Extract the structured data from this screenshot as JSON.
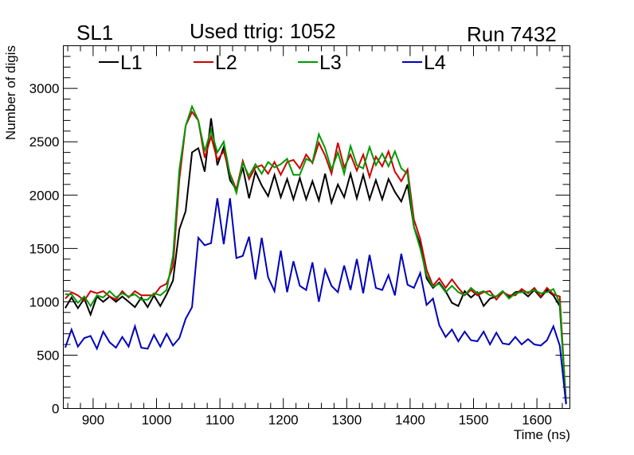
{
  "header": {
    "left_label": "SL1",
    "title": "Used ttrig: 1052",
    "right_label": "Run 7432"
  },
  "chart_data": {
    "type": "line",
    "title": "Used ttrig: 1052",
    "xlabel": "Time (ns)",
    "ylabel": "Number of digis",
    "xlim": [
      853,
      1652
    ],
    "ylim": [
      0,
      3400
    ],
    "xticks": [
      900,
      1000,
      1100,
      1200,
      1300,
      1400,
      1500,
      1600
    ],
    "yticks": [
      0,
      500,
      1000,
      1500,
      2000,
      2500,
      3000
    ],
    "legend_position": "top",
    "x": [
      856,
      866,
      876,
      886,
      896,
      906,
      916,
      926,
      936,
      946,
      956,
      966,
      976,
      986,
      996,
      1006,
      1016,
      1026,
      1036,
      1046,
      1056,
      1066,
      1076,
      1086,
      1096,
      1106,
      1116,
      1126,
      1136,
      1146,
      1156,
      1166,
      1176,
      1186,
      1196,
      1206,
      1216,
      1226,
      1236,
      1246,
      1256,
      1266,
      1276,
      1286,
      1296,
      1306,
      1316,
      1326,
      1336,
      1346,
      1356,
      1366,
      1376,
      1386,
      1396,
      1406,
      1416,
      1426,
      1436,
      1446,
      1456,
      1466,
      1476,
      1486,
      1496,
      1506,
      1516,
      1526,
      1536,
      1546,
      1556,
      1566,
      1576,
      1586,
      1596,
      1606,
      1616,
      1626,
      1636,
      1646
    ],
    "series": [
      {
        "name": "L1",
        "color": "#000000",
        "values": [
          940,
          1040,
          940,
          1030,
          880,
          1050,
          1000,
          1050,
          1000,
          1050,
          1000,
          950,
          1040,
          950,
          1060,
          960,
          1070,
          1200,
          1680,
          1850,
          2400,
          2440,
          2220,
          2720,
          2280,
          2450,
          2140,
          2050,
          2260,
          1970,
          2220,
          2090,
          1990,
          2190,
          1980,
          2150,
          1960,
          2160,
          1960,
          2130,
          1950,
          2200,
          1930,
          2100,
          1980,
          2200,
          1970,
          2190,
          1960,
          2140,
          1960,
          2150,
          2030,
          1940,
          2100,
          1700,
          1540,
          1220,
          1130,
          1180,
          1100,
          990,
          960,
          1100,
          1040,
          1090,
          960,
          1030,
          1050,
          1100,
          1040,
          1090,
          1100,
          1050,
          1110,
          1040,
          1110,
          1060,
          960,
          50
        ]
      },
      {
        "name": "L2",
        "color": "#cc0000",
        "values": [
          1030,
          1090,
          1060,
          1010,
          1100,
          1080,
          1100,
          1050,
          1020,
          1100,
          1040,
          1100,
          1060,
          1060,
          1060,
          1140,
          1170,
          1330,
          2150,
          2650,
          2780,
          2700,
          2350,
          2550,
          2330,
          2410,
          2200,
          2050,
          2320,
          2150,
          2260,
          2280,
          2200,
          2310,
          2190,
          2310,
          2330,
          2250,
          2380,
          2300,
          2490,
          2370,
          2200,
          2490,
          2260,
          2380,
          2230,
          2380,
          2170,
          2360,
          2270,
          2410,
          2220,
          2130,
          2240,
          1770,
          1590,
          1300,
          1150,
          1220,
          1130,
          1210,
          1130,
          1060,
          1110,
          1060,
          1090,
          1100,
          1020,
          1090,
          1060,
          1060,
          1120,
          1080,
          1130,
          1050,
          1130,
          1070,
          1050,
          50
        ]
      },
      {
        "name": "L3",
        "color": "#009900",
        "values": [
          1070,
          1070,
          990,
          1050,
          960,
          1060,
          1040,
          1100,
          1040,
          1080,
          1050,
          1070,
          1020,
          1020,
          1080,
          1060,
          1110,
          1430,
          2240,
          2650,
          2830,
          2700,
          2410,
          2610,
          2400,
          2500,
          2190,
          2020,
          2300,
          2180,
          2290,
          2200,
          2310,
          2260,
          2290,
          2340,
          2190,
          2190,
          2340,
          2310,
          2570,
          2440,
          2240,
          2400,
          2200,
          2460,
          2280,
          2250,
          2450,
          2280,
          2390,
          2270,
          2410,
          2250,
          2200,
          1700,
          1500,
          1250,
          1140,
          1170,
          1090,
          1150,
          1090,
          1060,
          1130,
          1080,
          1100,
          1060,
          1050,
          1100,
          1030,
          1080,
          1090,
          1090,
          1110,
          1080,
          1090,
          1120,
          990,
          50
        ]
      },
      {
        "name": "L4",
        "color": "#0000bb",
        "values": [
          570,
          740,
          580,
          660,
          680,
          560,
          720,
          620,
          570,
          670,
          580,
          770,
          570,
          560,
          690,
          580,
          700,
          590,
          660,
          840,
          950,
          1600,
          1530,
          1550,
          1970,
          1540,
          1970,
          1410,
          1430,
          1610,
          1210,
          1600,
          1230,
          1100,
          1480,
          1090,
          1380,
          1150,
          1110,
          1370,
          1000,
          1300,
          1150,
          1090,
          1340,
          1110,
          1400,
          1080,
          1440,
          1130,
          1110,
          1250,
          1060,
          1450,
          1160,
          1130,
          1270,
          970,
          1030,
          780,
          670,
          740,
          630,
          720,
          640,
          630,
          720,
          600,
          710,
          610,
          600,
          670,
          600,
          650,
          600,
          590,
          640,
          770,
          590,
          40
        ]
      }
    ]
  }
}
